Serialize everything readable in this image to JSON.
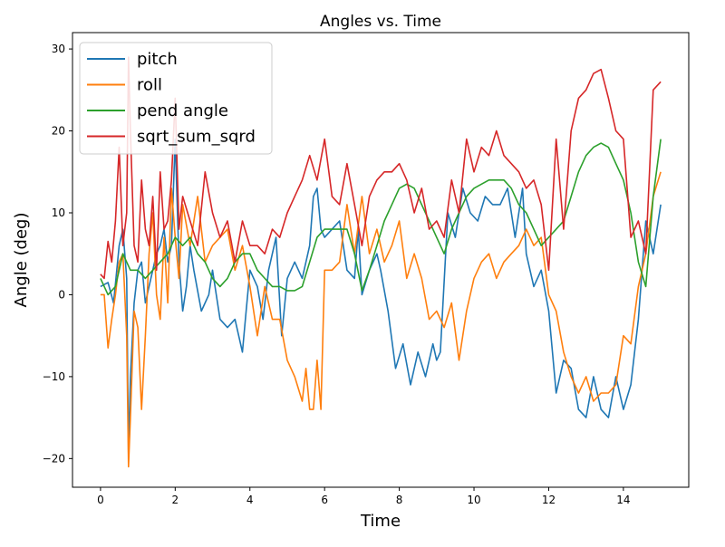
{
  "chart_data": {
    "type": "line",
    "title": "Angles vs. Time",
    "xlabel": "Time",
    "ylabel": "Angle (deg)",
    "xlim": [
      -0.75,
      15.75
    ],
    "ylim": [
      -23.5,
      32
    ],
    "xticks": [
      0,
      2,
      4,
      6,
      8,
      10,
      12,
      14
    ],
    "yticks": [
      -20,
      -10,
      0,
      10,
      20,
      30
    ],
    "grid": false,
    "legend_position": "upper-left",
    "series": [
      {
        "name": "pitch",
        "color": "#1f77b4",
        "x": [
          0,
          0.2,
          0.35,
          0.5,
          0.6,
          0.7,
          0.75,
          0.8,
          0.9,
          1.0,
          1.1,
          1.2,
          1.35,
          1.5,
          1.6,
          1.7,
          1.8,
          1.9,
          2.0,
          2.1,
          2.2,
          2.3,
          2.4,
          2.5,
          2.7,
          2.9,
          3.0,
          3.2,
          3.4,
          3.6,
          3.8,
          3.9,
          4.0,
          4.2,
          4.35,
          4.5,
          4.7,
          4.85,
          5.0,
          5.2,
          5.4,
          5.6,
          5.7,
          5.8,
          5.9,
          6.0,
          6.2,
          6.4,
          6.6,
          6.8,
          6.9,
          7.0,
          7.2,
          7.4,
          7.5,
          7.7,
          7.9,
          8.1,
          8.3,
          8.5,
          8.7,
          8.9,
          9.0,
          9.1,
          9.3,
          9.5,
          9.7,
          9.9,
          10.1,
          10.3,
          10.5,
          10.7,
          10.9,
          11.1,
          11.3,
          11.4,
          11.6,
          11.8,
          12.0,
          12.2,
          12.4,
          12.6,
          12.8,
          13.0,
          13.2,
          13.4,
          13.6,
          13.8,
          14.0,
          14.2,
          14.4,
          14.6,
          14.8,
          15.0
        ],
        "values": [
          1,
          1.5,
          -1,
          6,
          8,
          2,
          -19.5,
          -10,
          -1,
          3,
          4,
          -1,
          2,
          5,
          6,
          8,
          4,
          6,
          19,
          4,
          -2,
          1,
          6,
          3,
          -2,
          0,
          3,
          -3,
          -4,
          -3,
          -7,
          -2,
          3,
          1,
          -3,
          3,
          7,
          -5,
          2,
          4,
          2,
          6,
          12,
          13,
          8,
          7,
          8,
          9,
          3,
          2,
          8,
          0,
          3,
          5,
          3,
          -2,
          -9,
          -6,
          -11,
          -7,
          -10,
          -6,
          -8,
          -7,
          10,
          7,
          13,
          10,
          9,
          12,
          11,
          11,
          13,
          7,
          13,
          5,
          1,
          3,
          -2,
          -12,
          -8,
          -9,
          -14,
          -15,
          -10,
          -14,
          -15,
          -10,
          -14,
          -11,
          -3,
          9,
          5,
          11
        ]
      },
      {
        "name": "roll",
        "color": "#ff7f0e",
        "x": [
          0,
          0.1,
          0.2,
          0.3,
          0.4,
          0.5,
          0.6,
          0.7,
          0.75,
          0.8,
          0.9,
          1.0,
          1.1,
          1.2,
          1.3,
          1.4,
          1.5,
          1.6,
          1.7,
          1.8,
          1.9,
          2.0,
          2.1,
          2.2,
          2.4,
          2.6,
          2.8,
          3.0,
          3.2,
          3.4,
          3.6,
          3.8,
          4.0,
          4.2,
          4.4,
          4.6,
          4.8,
          5.0,
          5.2,
          5.4,
          5.5,
          5.6,
          5.7,
          5.8,
          5.9,
          6.0,
          6.2,
          6.4,
          6.6,
          6.8,
          7.0,
          7.2,
          7.4,
          7.6,
          7.8,
          8.0,
          8.2,
          8.4,
          8.6,
          8.8,
          9.0,
          9.2,
          9.4,
          9.6,
          9.8,
          10.0,
          10.2,
          10.4,
          10.6,
          10.8,
          11.0,
          11.2,
          11.4,
          11.6,
          11.8,
          12.0,
          12.2,
          12.4,
          12.6,
          12.8,
          13.0,
          13.2,
          13.4,
          13.6,
          13.8,
          14.0,
          14.2,
          14.4,
          14.6,
          14.8,
          15.0
        ],
        "values": [
          0,
          0,
          -6.5,
          -3,
          0,
          4,
          5,
          -5,
          -21,
          -15,
          -2,
          -4,
          -14,
          -5,
          5,
          10,
          0,
          -3,
          7,
          -1,
          13,
          7,
          2,
          11,
          6,
          12,
          4,
          6,
          7,
          8,
          3,
          6,
          1,
          -5,
          1,
          -3,
          -3,
          -8,
          -10,
          -13,
          -9,
          -14,
          -14,
          -8,
          -14,
          3,
          3,
          4,
          11,
          5,
          12,
          5,
          8,
          4,
          6,
          9,
          2,
          5,
          2,
          -3,
          -2,
          -4,
          -1,
          -8,
          -2,
          2,
          4,
          5,
          2,
          4,
          5,
          6,
          8,
          6,
          7,
          0,
          -2,
          -7,
          -10,
          -12,
          -10,
          -13,
          -12,
          -12,
          -11,
          -5,
          -6,
          1,
          5,
          12,
          15
        ]
      },
      {
        "name": "pend angle",
        "color": "#2ca02c",
        "x": [
          0,
          0.2,
          0.4,
          0.6,
          0.8,
          1.0,
          1.2,
          1.4,
          1.6,
          1.8,
          2.0,
          2.2,
          2.4,
          2.6,
          2.8,
          3.0,
          3.2,
          3.4,
          3.6,
          3.8,
          4.0,
          4.2,
          4.4,
          4.6,
          4.8,
          5.0,
          5.2,
          5.4,
          5.6,
          5.8,
          6.0,
          6.2,
          6.4,
          6.6,
          6.8,
          7.0,
          7.2,
          7.4,
          7.6,
          7.8,
          8.0,
          8.2,
          8.4,
          8.6,
          8.8,
          9.0,
          9.2,
          9.4,
          9.6,
          9.8,
          10.0,
          10.2,
          10.4,
          10.6,
          10.8,
          11.0,
          11.2,
          11.4,
          11.6,
          11.8,
          12.0,
          12.2,
          12.4,
          12.6,
          12.8,
          13.0,
          13.2,
          13.4,
          13.6,
          13.8,
          14.0,
          14.2,
          14.4,
          14.6,
          14.8,
          15.0
        ],
        "values": [
          2,
          0,
          1,
          5,
          3,
          3,
          2,
          3,
          4,
          5,
          7,
          6,
          7,
          5,
          4,
          2,
          1,
          2,
          4,
          5,
          5,
          3,
          2,
          1,
          1,
          0.5,
          0.5,
          1,
          4,
          7,
          8,
          8,
          8,
          8,
          5,
          0.5,
          3,
          6,
          9,
          11,
          13,
          13.5,
          13,
          11,
          9,
          7,
          5,
          8,
          10,
          12,
          13,
          13.5,
          14,
          14,
          14,
          13,
          11,
          10,
          8,
          6,
          7,
          8,
          9,
          12,
          15,
          17,
          18,
          18.5,
          18,
          16,
          14,
          10,
          4,
          1,
          12,
          19
        ]
      },
      {
        "name": "sqrt_sum_sqrd",
        "color": "#d62728",
        "x": [
          0,
          0.1,
          0.2,
          0.3,
          0.4,
          0.5,
          0.6,
          0.7,
          0.75,
          0.8,
          0.9,
          1.0,
          1.1,
          1.2,
          1.3,
          1.4,
          1.5,
          1.6,
          1.7,
          1.8,
          1.9,
          2.0,
          2.1,
          2.2,
          2.4,
          2.6,
          2.8,
          3.0,
          3.2,
          3.4,
          3.6,
          3.8,
          4.0,
          4.2,
          4.4,
          4.6,
          4.8,
          5.0,
          5.2,
          5.4,
          5.6,
          5.8,
          6.0,
          6.2,
          6.4,
          6.6,
          6.8,
          7.0,
          7.2,
          7.4,
          7.6,
          7.8,
          8.0,
          8.2,
          8.4,
          8.6,
          8.8,
          9.0,
          9.2,
          9.4,
          9.6,
          9.8,
          10.0,
          10.2,
          10.4,
          10.6,
          10.8,
          11.0,
          11.2,
          11.4,
          11.6,
          11.8,
          12.0,
          12.2,
          12.4,
          12.6,
          12.8,
          13.0,
          13.2,
          13.4,
          13.6,
          13.8,
          14.0,
          14.2,
          14.4,
          14.6,
          14.8,
          15.0
        ],
        "values": [
          2.5,
          2,
          6.5,
          4,
          9,
          18,
          6,
          10,
          29,
          20,
          6,
          4,
          14,
          8,
          6,
          12,
          3,
          15,
          8,
          9,
          14,
          24,
          8,
          12,
          9,
          6,
          15,
          10,
          7,
          9,
          4,
          9,
          6,
          6,
          5,
          8,
          7,
          10,
          12,
          14,
          17,
          14,
          19,
          12,
          11,
          16,
          11,
          6,
          12,
          14,
          15,
          15,
          16,
          14,
          10,
          13,
          8,
          9,
          7,
          14,
          10,
          19,
          15,
          18,
          17,
          20,
          17,
          16,
          15,
          13,
          14,
          11,
          3,
          19,
          8,
          20,
          24,
          25,
          27,
          27.5,
          24,
          20,
          19,
          7,
          9,
          5,
          25,
          26
        ]
      }
    ]
  }
}
